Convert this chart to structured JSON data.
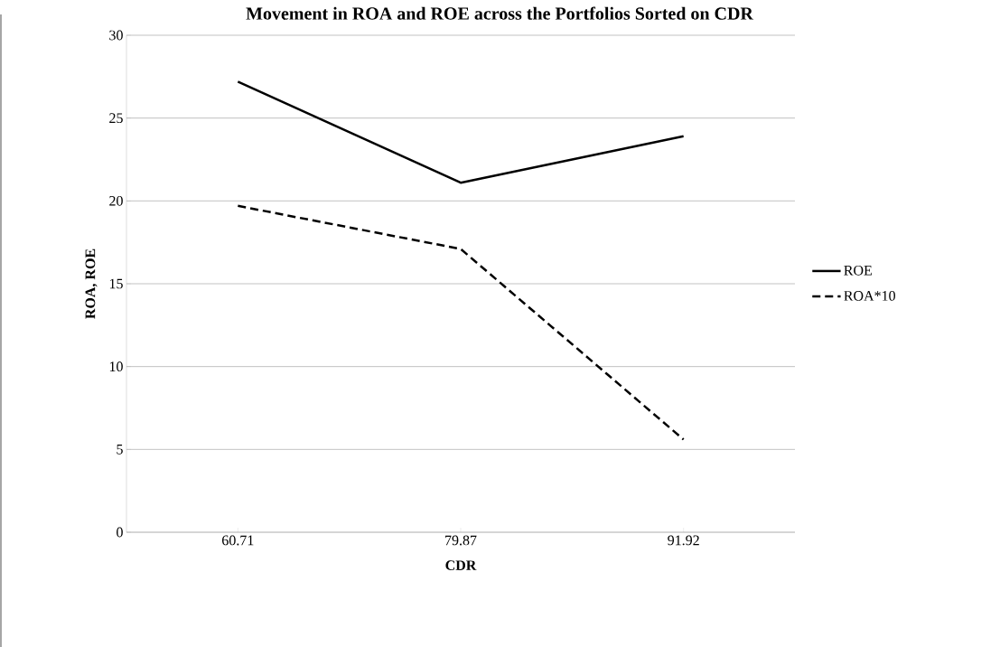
{
  "chart_data": {
    "type": "line",
    "title": "Movement in ROA and ROE across the Portfolios Sorted on CDR",
    "xlabel": "CDR",
    "ylabel": "ROA, ROE",
    "categories": [
      "60.71",
      "79.87",
      "91.92"
    ],
    "series": [
      {
        "name": "ROE",
        "color": "#000000",
        "values": [
          27.2,
          21.1,
          23.9
        ],
        "line_style": "solid"
      },
      {
        "name": "ROA*10",
        "color": "#000000",
        "values": [
          19.7,
          17.1,
          5.6
        ],
        "line_style": "dashed"
      }
    ],
    "ylim": [
      0,
      30
    ],
    "yticks": [
      0,
      5,
      10,
      15,
      20,
      25,
      30
    ],
    "grid": "y",
    "legend": "right",
    "marker": "none"
  }
}
